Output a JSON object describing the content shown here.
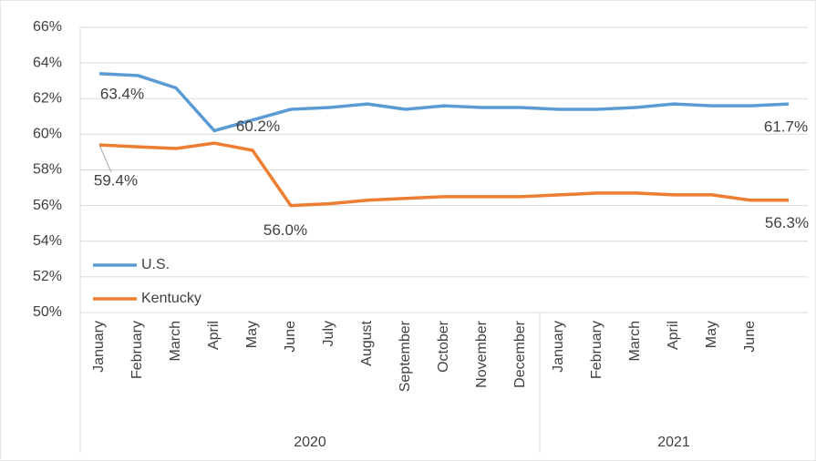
{
  "chart_data": {
    "type": "line",
    "categories": [
      "January",
      "February",
      "March",
      "April",
      "May",
      "June",
      "July",
      "August",
      "September",
      "October",
      "November",
      "December",
      "January",
      "February",
      "March",
      "April",
      "May",
      "June",
      null
    ],
    "groups": [
      {
        "label": "2020",
        "count": 12
      },
      {
        "label": "2021",
        "count": 7
      }
    ],
    "series": [
      {
        "name": "U.S.",
        "color": "#5b9bd5",
        "values": [
          63.4,
          63.3,
          62.6,
          60.2,
          60.8,
          61.4,
          61.5,
          61.7,
          61.4,
          61.6,
          61.5,
          61.5,
          61.4,
          61.4,
          61.5,
          61.7,
          61.6,
          61.6,
          61.7
        ],
        "value_labels": [
          "63.4%",
          null,
          null,
          "60.2%",
          null,
          null,
          null,
          null,
          null,
          null,
          null,
          null,
          null,
          null,
          null,
          null,
          null,
          null,
          "61.7%"
        ]
      },
      {
        "name": "Kentucky",
        "color": "#ed7d31",
        "values": [
          59.4,
          59.3,
          59.2,
          59.5,
          59.1,
          56.0,
          56.1,
          56.3,
          56.4,
          56.5,
          56.5,
          56.5,
          56.6,
          56.7,
          56.7,
          56.6,
          56.6,
          56.3,
          56.3
        ],
        "value_labels": [
          "59.4%",
          null,
          null,
          null,
          null,
          "56.0%",
          null,
          null,
          null,
          null,
          null,
          null,
          null,
          null,
          null,
          null,
          null,
          null,
          "56.3%"
        ]
      }
    ],
    "ylim": [
      50,
      66
    ],
    "yticks": [
      {
        "value": 50,
        "label": "50%"
      },
      {
        "value": 52,
        "label": "52%"
      },
      {
        "value": 54,
        "label": "54%"
      },
      {
        "value": 56,
        "label": "56%"
      },
      {
        "value": 58,
        "label": "58%"
      },
      {
        "value": 60,
        "label": "60%"
      },
      {
        "value": 62,
        "label": "62%"
      },
      {
        "value": 64,
        "label": "64%"
      },
      {
        "value": 66,
        "label": "66%"
      }
    ],
    "grid": true,
    "legend": "lower left"
  }
}
